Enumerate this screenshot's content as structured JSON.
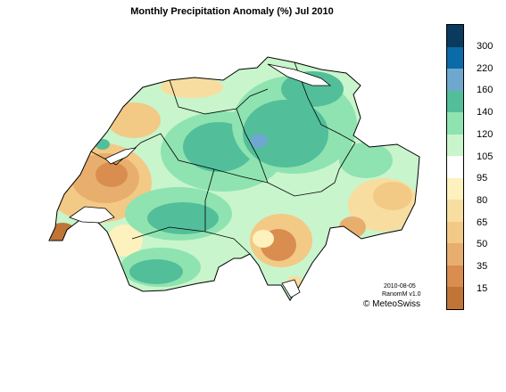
{
  "title": "Monthly Precipitation Anomaly (%) Jul 2010",
  "legend": {
    "colors": [
      "#0a3a5e",
      "#0b6aa8",
      "#6ea8cf",
      "#52bf9a",
      "#8fe3b0",
      "#c8f5cc",
      "#ffffff",
      "#fdf1bd",
      "#f8dda0",
      "#f3c986",
      "#e8ae6e",
      "#d98d4f",
      "#c07537"
    ],
    "labels": [
      "300",
      "220",
      "160",
      "140",
      "120",
      "105",
      "95",
      "80",
      "65",
      "50",
      "35",
      "15"
    ]
  },
  "credit": {
    "date": "2010-08-05",
    "version": "RanomM v1.0",
    "agency": "© MeteoSwiss"
  }
}
